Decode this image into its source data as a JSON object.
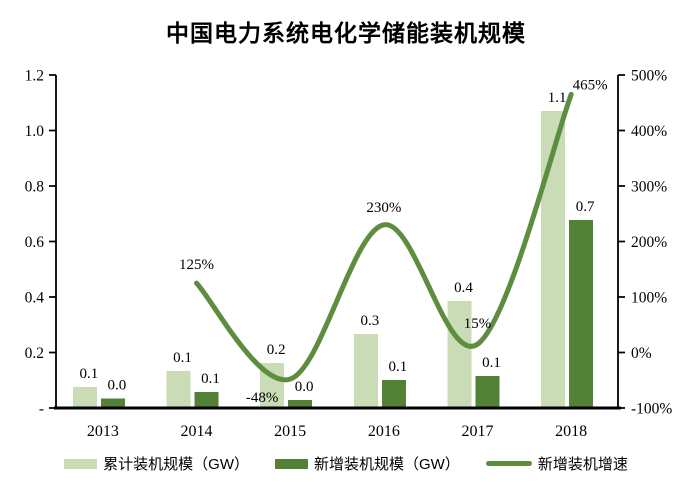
{
  "chart_data": {
    "type": "bar",
    "combo": "grouped bars on left GW axis + smooth line on right percent axis",
    "title": "中国电力系统电化学储能装机规模",
    "categories": [
      "2013",
      "2014",
      "2015",
      "2016",
      "2017",
      "2018"
    ],
    "series": [
      {
        "name": "累计装机规模（GW）",
        "kind": "bar",
        "axis": "left",
        "color": "#c9dcb6",
        "values": [
          0.076,
          0.133,
          0.162,
          0.267,
          0.386,
          1.07
        ],
        "labels": [
          "0.1",
          "0.1",
          "0.2",
          "0.3",
          "0.4",
          "1.1"
        ]
      },
      {
        "name": "新增装机规模（GW）",
        "kind": "bar",
        "axis": "left",
        "color": "#538135",
        "values": [
          0.035,
          0.058,
          0.029,
          0.101,
          0.115,
          0.677
        ],
        "labels": [
          "0.0",
          "0.1",
          "0.0",
          "0.1",
          "0.1",
          "0.7"
        ]
      },
      {
        "name": "新增装机增速",
        "kind": "line",
        "axis": "right",
        "color": "#5d8d3f",
        "values": [
          null,
          125,
          -48,
          230,
          15,
          465
        ],
        "labels": [
          null,
          "125%",
          "-48%",
          "230%",
          "15%",
          "465%"
        ]
      }
    ],
    "left_axis": {
      "min": 0,
      "max": 1.2,
      "tick_labels_top_to_bottom": [
        "1.2",
        "1.0",
        "0.8",
        "0.6",
        "0.4",
        "0.2",
        "-"
      ]
    },
    "right_axis": {
      "min": -100,
      "max": 500,
      "tick_labels_top_to_bottom": [
        "500%",
        "400%",
        "300%",
        "200%",
        "100%",
        "0%",
        "-100%"
      ]
    },
    "legend_position": "bottom",
    "grid": false,
    "text_color": "#000000",
    "background": "#ffffff"
  }
}
